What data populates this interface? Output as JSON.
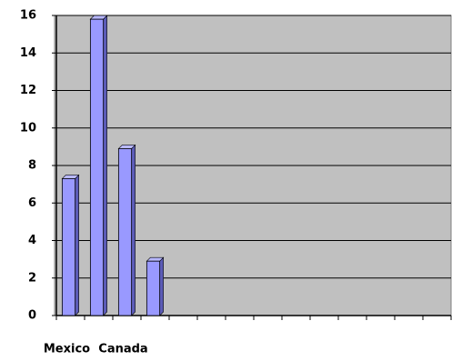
{
  "chart_data": {
    "type": "bar",
    "categories": [
      "Mexico",
      null,
      "Canada",
      null,
      null,
      null,
      null,
      null,
      null,
      null,
      null,
      null,
      null,
      null
    ],
    "values": [
      7.3,
      15.8,
      8.9,
      2.9,
      null,
      null,
      null,
      null,
      null,
      null,
      null,
      null,
      null,
      null
    ],
    "color": "#9999ff",
    "ylim": [
      0,
      16
    ],
    "yticks": [
      0,
      2,
      4,
      6,
      8,
      10,
      12,
      14,
      16
    ],
    "grid": true
  }
}
